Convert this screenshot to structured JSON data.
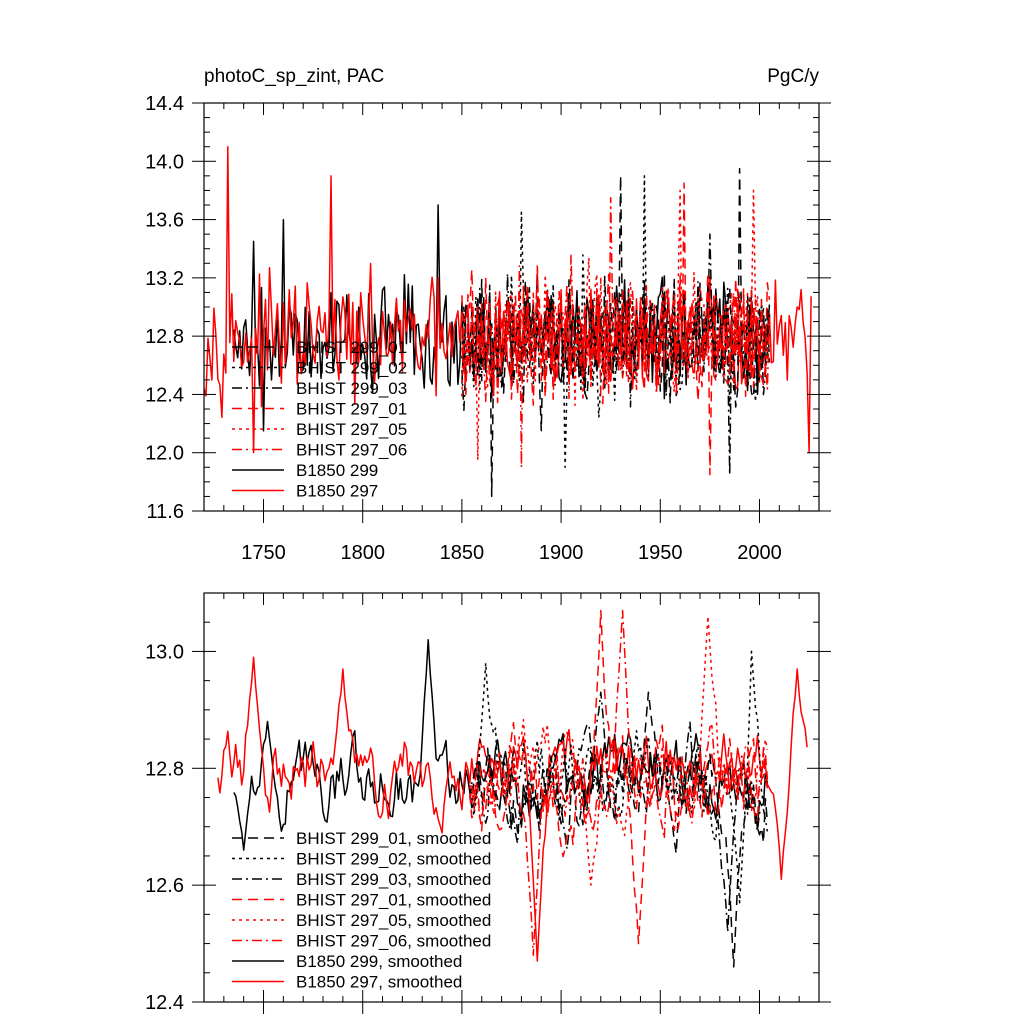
{
  "chart_data": [
    {
      "type": "line",
      "title": "photoC_sp_zint, PAC",
      "units": "PgC/y",
      "xlim": [
        1720,
        2030
      ],
      "ylim": [
        11.6,
        14.4
      ],
      "x_ticks": [
        1750,
        1800,
        1850,
        1900,
        1950,
        2000
      ],
      "x_tick_labels": [
        "1750",
        "1800",
        "1850",
        "1900",
        "1950",
        "2000"
      ],
      "y_ticks": [
        11.6,
        12.0,
        12.4,
        12.8,
        13.2,
        13.6,
        14.0,
        14.4
      ],
      "y_tick_labels": [
        "11.6",
        "12.0",
        "12.4",
        "12.8",
        "13.2",
        "13.6",
        "14.0",
        "14.4"
      ],
      "legend": [
        {
          "name": "BHIST 299_01",
          "color": "#000000",
          "dash": "dash"
        },
        {
          "name": "BHIST 299_02",
          "color": "#000000",
          "dash": "dot"
        },
        {
          "name": "BHIST 299_03",
          "color": "#000000",
          "dash": "dashdot"
        },
        {
          "name": "BHIST 297_01",
          "color": "#ff0000",
          "dash": "dash"
        },
        {
          "name": "BHIST 297_05",
          "color": "#ff0000",
          "dash": "dot"
        },
        {
          "name": "BHIST 297_06",
          "color": "#ff0000",
          "dash": "dashdot"
        },
        {
          "name": "B1850 299",
          "color": "#000000",
          "dash": "solid"
        },
        {
          "name": "B1850 297",
          "color": "#ff0000",
          "dash": "solid"
        }
      ],
      "series": [
        {
          "name": "BHIST 299_01",
          "x_start": 1850,
          "x_end": 2005,
          "mean": 12.75,
          "amp": 0.38,
          "seed": 11,
          "peaks": [
            [
              1930,
              13.9
            ],
            [
              1990,
              13.95
            ]
          ],
          "troughs": [
            [
              1865,
              11.7
            ]
          ]
        },
        {
          "name": "BHIST 299_02",
          "x_start": 1850,
          "x_end": 2005,
          "mean": 12.78,
          "amp": 0.36,
          "seed": 23,
          "peaks": [
            [
              1880,
              13.65
            ],
            [
              1942,
              13.9
            ]
          ],
          "troughs": [
            [
              1902,
              11.9
            ]
          ]
        },
        {
          "name": "BHIST 299_03",
          "x_start": 1850,
          "x_end": 2005,
          "mean": 12.76,
          "amp": 0.36,
          "seed": 37,
          "peaks": [
            [
              1975,
              13.5
            ]
          ],
          "troughs": [
            [
              1985,
              11.85
            ]
          ]
        },
        {
          "name": "BHIST 297_01",
          "x_start": 1850,
          "x_end": 2005,
          "mean": 12.8,
          "amp": 0.38,
          "seed": 41,
          "peaks": [
            [
              1962,
              13.85
            ]
          ],
          "troughs": [
            [
              1975,
              11.85
            ]
          ]
        },
        {
          "name": "BHIST 297_05",
          "x_start": 1850,
          "x_end": 2005,
          "mean": 12.82,
          "amp": 0.36,
          "seed": 53,
          "peaks": [
            [
              1960,
              13.8
            ],
            [
              1997,
              13.8
            ]
          ],
          "troughs": [
            [
              1858,
              11.95
            ]
          ]
        },
        {
          "name": "BHIST 297_06",
          "x_start": 1850,
          "x_end": 2005,
          "mean": 12.8,
          "amp": 0.36,
          "seed": 67,
          "peaks": [
            [
              1925,
              13.75
            ]
          ],
          "troughs": [
            [
              1880,
              11.9
            ]
          ]
        },
        {
          "name": "B1850 299",
          "x_start": 1735,
          "x_end": 2005,
          "mean": 12.8,
          "amp": 0.33,
          "seed": 79,
          "peaks": [
            [
              1745,
              13.45
            ],
            [
              1760,
              13.6
            ],
            [
              1838,
              13.7
            ]
          ],
          "troughs": [
            [
              1750,
              12.15
            ]
          ]
        },
        {
          "name": "B1850 297",
          "x_start": 1720,
          "x_end": 2026,
          "mean": 12.78,
          "amp": 0.32,
          "seed": 97,
          "peaks": [
            [
              1732,
              14.1
            ],
            [
              1784,
              13.9
            ]
          ],
          "troughs": [
            [
              1745,
              12.0
            ],
            [
              2025,
              12.0
            ]
          ]
        }
      ]
    },
    {
      "type": "line",
      "title": "",
      "xlim": [
        1720,
        2030
      ],
      "ylim": [
        12.4,
        13.1
      ],
      "x_ticks": [
        1750,
        1800,
        1850,
        1900,
        1950,
        2000
      ],
      "y_ticks": [
        12.4,
        12.6,
        12.8,
        13.0
      ],
      "y_tick_labels": [
        "12.4",
        "12.6",
        "12.8",
        "13.0"
      ],
      "legend": [
        {
          "name": "BHIST 299_01, smoothed",
          "color": "#000000",
          "dash": "dash"
        },
        {
          "name": "BHIST 299_02, smoothed",
          "color": "#000000",
          "dash": "dot"
        },
        {
          "name": "BHIST 299_03, smoothed",
          "color": "#000000",
          "dash": "dashdot"
        },
        {
          "name": "BHIST 297_01, smoothed",
          "color": "#ff0000",
          "dash": "dash"
        },
        {
          "name": "BHIST 297_05, smoothed",
          "color": "#ff0000",
          "dash": "dot"
        },
        {
          "name": "BHIST 297_06, smoothed",
          "color": "#ff0000",
          "dash": "dashdot"
        },
        {
          "name": "B1850 299, smoothed",
          "color": "#000000",
          "dash": "solid"
        },
        {
          "name": "B1850 297, smoothed",
          "color": "#ff0000",
          "dash": "solid"
        }
      ],
      "series": [
        {
          "name": "BHIST 299_01, smoothed",
          "x_start": 1854,
          "x_end": 2004,
          "mean": 12.77,
          "amp": 0.08,
          "seed": 111,
          "peaks": [
            [
              1944,
              12.93
            ]
          ],
          "troughs": [
            [
              1987,
              12.46
            ]
          ]
        },
        {
          "name": "BHIST 299_02, smoothed",
          "x_start": 1854,
          "x_end": 2004,
          "mean": 12.78,
          "amp": 0.08,
          "seed": 123,
          "peaks": [
            [
              1862,
              12.98
            ],
            [
              1996,
              13.0
            ]
          ],
          "troughs": [
            [
              1990,
              12.57
            ]
          ]
        },
        {
          "name": "BHIST 299_03, smoothed",
          "x_start": 1854,
          "x_end": 2004,
          "mean": 12.77,
          "amp": 0.08,
          "seed": 137,
          "peaks": [
            [
              1920,
              12.93
            ]
          ],
          "troughs": [
            [
              1984,
              12.52
            ]
          ]
        },
        {
          "name": "BHIST 297_01, smoothed",
          "x_start": 1854,
          "x_end": 2004,
          "mean": 12.78,
          "amp": 0.09,
          "seed": 141,
          "peaks": [
            [
              1920,
              13.07
            ]
          ],
          "troughs": [
            [
              1939,
              12.5
            ]
          ]
        },
        {
          "name": "BHIST 297_05, smoothed",
          "x_start": 1854,
          "x_end": 2004,
          "mean": 12.79,
          "amp": 0.08,
          "seed": 153,
          "peaks": [
            [
              1974,
              13.06
            ]
          ],
          "troughs": [
            [
              1915,
              12.6
            ]
          ]
        },
        {
          "name": "BHIST 297_06, smoothed",
          "x_start": 1854,
          "x_end": 2004,
          "mean": 12.79,
          "amp": 0.08,
          "seed": 167,
          "peaks": [
            [
              1931,
              13.07
            ]
          ],
          "troughs": [
            [
              1886,
              12.48
            ]
          ]
        },
        {
          "name": "B1850 299, smoothed",
          "x_start": 1735,
          "x_end": 2004,
          "mean": 12.78,
          "amp": 0.07,
          "seed": 179,
          "peaks": [
            [
              1833,
              13.02
            ],
            [
              1752,
              12.88
            ]
          ],
          "troughs": [
            [
              1740,
              12.66
            ]
          ]
        },
        {
          "name": "B1850 297, smoothed",
          "x_start": 1727,
          "x_end": 2024,
          "mean": 12.8,
          "amp": 0.07,
          "seed": 197,
          "peaks": [
            [
              1745,
              12.99
            ],
            [
              1790,
              12.97
            ],
            [
              2019,
              12.97
            ]
          ],
          "troughs": [
            [
              1888,
              12.47
            ],
            [
              2011,
              12.61
            ]
          ]
        }
      ]
    }
  ]
}
